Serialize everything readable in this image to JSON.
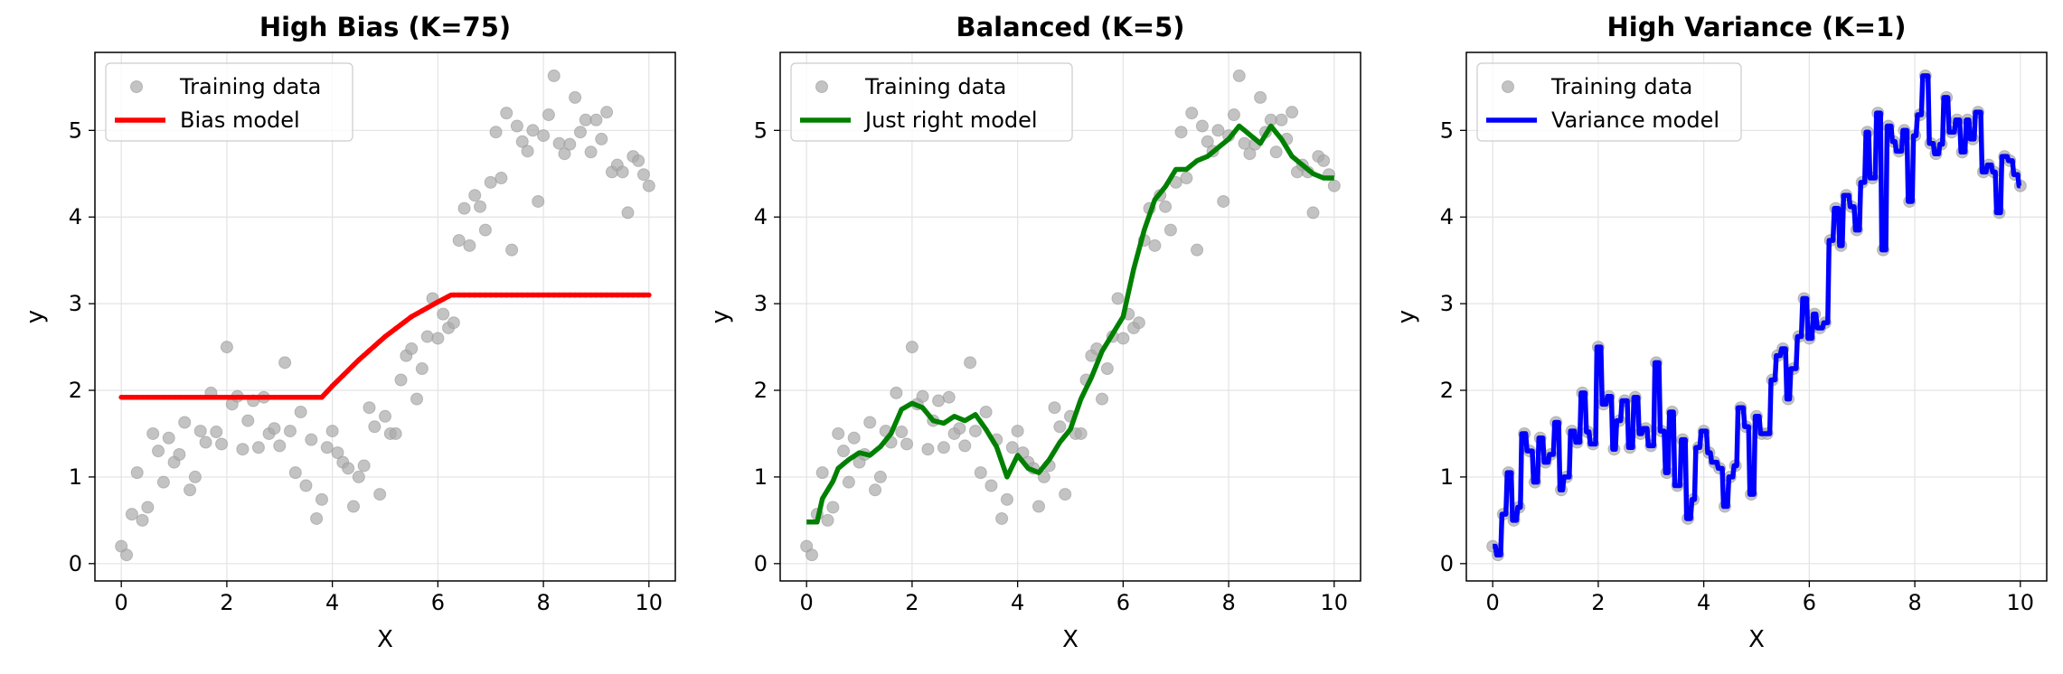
{
  "chart_data": [
    {
      "type": "scatter+line",
      "title": "High Bias (K=75)",
      "xlabel": "X",
      "ylabel": "y",
      "xlim": [
        -0.5,
        10.5
      ],
      "ylim": [
        -0.2,
        5.9
      ],
      "xticks": [
        0,
        2,
        4,
        6,
        8,
        10
      ],
      "yticks": [
        0,
        1,
        2,
        3,
        4,
        5
      ],
      "grid": true,
      "legend": "top-left",
      "model_color": "#ff0000",
      "legend_labels": [
        "Training data",
        "Bias model"
      ],
      "model_style": "dots",
      "model": {
        "name": "Bias model",
        "x": [
          0,
          3.8,
          4.0,
          4.5,
          5.0,
          5.5,
          6.0,
          6.25,
          10
        ],
        "y": [
          1.92,
          1.92,
          2.05,
          2.35,
          2.62,
          2.85,
          3.02,
          3.1,
          3.1
        ]
      }
    },
    {
      "type": "scatter+line",
      "title": "Balanced (K=5)",
      "xlabel": "X",
      "ylabel": "y",
      "xlim": [
        -0.5,
        10.5
      ],
      "ylim": [
        -0.2,
        5.9
      ],
      "xticks": [
        0,
        2,
        4,
        6,
        8,
        10
      ],
      "yticks": [
        0,
        1,
        2,
        3,
        4,
        5
      ],
      "grid": true,
      "legend": "top-left",
      "model_color": "#008000",
      "legend_labels": [
        "Training data",
        "Just right model"
      ],
      "model_style": "line",
      "model": {
        "name": "Just right model",
        "x": [
          0,
          0.2,
          0.3,
          0.5,
          0.6,
          0.8,
          1.0,
          1.2,
          1.4,
          1.6,
          1.8,
          2.0,
          2.2,
          2.4,
          2.6,
          2.8,
          3.0,
          3.2,
          3.4,
          3.6,
          3.8,
          4.0,
          4.2,
          4.4,
          4.6,
          4.8,
          5.0,
          5.2,
          5.4,
          5.6,
          5.8,
          6.0,
          6.2,
          6.4,
          6.6,
          6.8,
          7.0,
          7.2,
          7.4,
          7.6,
          7.8,
          8.0,
          8.2,
          8.4,
          8.6,
          8.8,
          9.0,
          9.2,
          9.4,
          9.6,
          9.8,
          10.0
        ],
        "y": [
          0.48,
          0.48,
          0.75,
          0.95,
          1.1,
          1.2,
          1.28,
          1.25,
          1.35,
          1.5,
          1.78,
          1.85,
          1.8,
          1.65,
          1.62,
          1.7,
          1.65,
          1.72,
          1.55,
          1.35,
          1.0,
          1.25,
          1.1,
          1.05,
          1.2,
          1.4,
          1.55,
          1.9,
          2.15,
          2.45,
          2.65,
          2.85,
          3.4,
          3.85,
          4.2,
          4.35,
          4.55,
          4.55,
          4.65,
          4.7,
          4.8,
          4.9,
          5.05,
          4.95,
          4.85,
          5.05,
          4.9,
          4.7,
          4.6,
          4.5,
          4.45,
          4.45
        ]
      }
    },
    {
      "type": "scatter+line",
      "title": "High Variance (K=1)",
      "xlabel": "X",
      "ylabel": "y",
      "xlim": [
        -0.5,
        10.5
      ],
      "ylim": [
        -0.2,
        5.9
      ],
      "xticks": [
        0,
        2,
        4,
        6,
        8,
        10
      ],
      "yticks": [
        0,
        1,
        2,
        3,
        4,
        5
      ],
      "grid": true,
      "legend": "top-left",
      "model_color": "#0000ff",
      "legend_labels": [
        "Training data",
        "Variance model"
      ],
      "model_style": "interpolate",
      "model": {
        "name": "Variance model"
      }
    }
  ],
  "training_data": {
    "x": [
      0.0,
      0.1,
      0.2,
      0.3,
      0.4,
      0.5,
      0.6,
      0.7,
      0.8,
      0.9,
      1.0,
      1.1,
      1.2,
      1.3,
      1.4,
      1.5,
      1.6,
      1.7,
      1.8,
      1.9,
      2.0,
      2.1,
      2.2,
      2.3,
      2.4,
      2.5,
      2.6,
      2.7,
      2.8,
      2.9,
      3.0,
      3.1,
      3.2,
      3.3,
      3.4,
      3.5,
      3.6,
      3.7,
      3.8,
      3.9,
      4.0,
      4.1,
      4.2,
      4.3,
      4.4,
      4.5,
      4.6,
      4.7,
      4.8,
      4.9,
      5.0,
      5.1,
      5.2,
      5.3,
      5.4,
      5.5,
      5.6,
      5.7,
      5.8,
      5.9,
      6.0,
      6.1,
      6.2,
      6.3,
      6.4,
      6.5,
      6.6,
      6.7,
      6.8,
      6.9,
      7.0,
      7.1,
      7.2,
      7.3,
      7.4,
      7.5,
      7.6,
      7.7,
      7.8,
      7.9,
      8.0,
      8.1,
      8.2,
      8.3,
      8.4,
      8.5,
      8.6,
      8.7,
      8.8,
      8.9,
      9.0,
      9.1,
      9.2,
      9.3,
      9.4,
      9.5,
      9.6,
      9.7,
      9.8,
      9.9,
      10.0
    ],
    "y": [
      0.2,
      0.1,
      0.57,
      1.05,
      0.5,
      0.65,
      1.5,
      1.3,
      0.94,
      1.45,
      1.17,
      1.26,
      1.63,
      0.85,
      1.0,
      1.53,
      1.4,
      1.97,
      1.52,
      1.38,
      2.5,
      1.84,
      1.93,
      1.32,
      1.65,
      1.88,
      1.34,
      1.92,
      1.5,
      1.56,
      1.36,
      2.32,
      1.53,
      1.05,
      1.75,
      0.9,
      1.43,
      0.52,
      0.74,
      1.34,
      1.53,
      1.28,
      1.17,
      1.1,
      0.66,
      1.0,
      1.13,
      1.8,
      1.58,
      0.8,
      1.7,
      1.5,
      1.5,
      2.12,
      2.4,
      2.48,
      1.9,
      2.25,
      2.62,
      3.06,
      2.6,
      2.88,
      2.72,
      2.78,
      3.73,
      4.1,
      3.67,
      4.25,
      4.12,
      3.85,
      4.4,
      4.98,
      4.45,
      5.2,
      3.62,
      5.05,
      4.87,
      4.76,
      5.0,
      4.18,
      4.94,
      5.18,
      5.63,
      4.85,
      4.73,
      4.84,
      5.38,
      4.98,
      5.12,
      4.75,
      5.12,
      4.9,
      5.21,
      4.52,
      4.6,
      4.52,
      4.05,
      4.7,
      4.65,
      4.49,
      4.36
    ],
    "color": "#a9a9a9"
  }
}
